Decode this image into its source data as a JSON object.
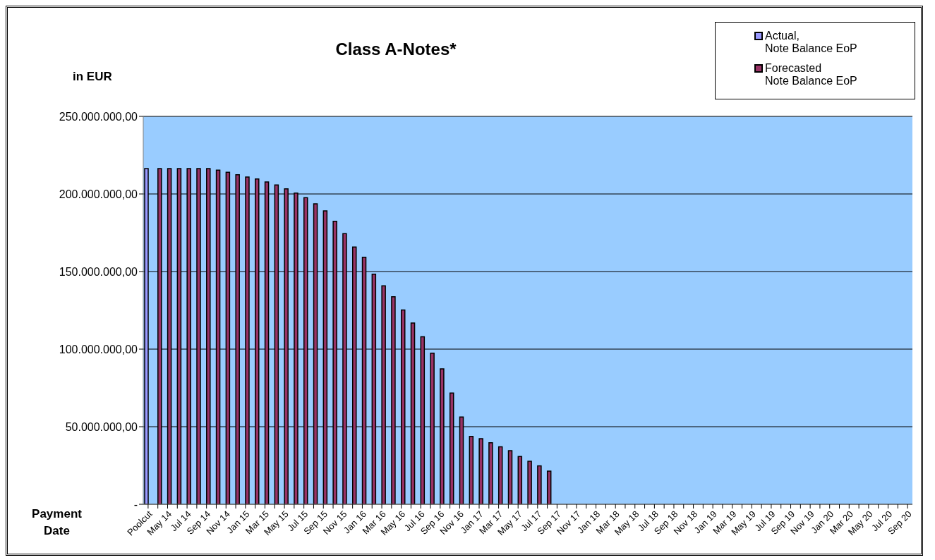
{
  "chart_data": {
    "type": "bar",
    "title": "Class A-Notes*",
    "ylabel": "in EUR",
    "xlabel": "Payment Date",
    "categories": [
      "Poolcut",
      null,
      "May 14",
      null,
      "Jul 14",
      null,
      "Sep 14",
      null,
      "Nov 14",
      null,
      "Jan 15",
      null,
      "Mar 15",
      null,
      "May 15",
      null,
      "Jul 15",
      null,
      "Sep 15",
      null,
      "Nov 15",
      null,
      "Jan 16",
      null,
      "Mar 16",
      null,
      "May 16",
      null,
      "Jul 16",
      null,
      "Sep 16",
      null,
      "Nov 16",
      null,
      "Jan 17",
      null,
      "Mar 17",
      null,
      "May 17",
      null,
      "Jul 17",
      null,
      "Sep 17",
      null,
      "Nov 17",
      null,
      "Jan 18",
      null,
      "Mar 18",
      null,
      "May 18",
      null,
      "Jul 18",
      null,
      "Sep 18",
      null,
      "Nov 18",
      null,
      "Jan 19",
      null,
      "Mar 19",
      null,
      "May 19",
      null,
      "Jul 19",
      null,
      "Sep 19",
      null,
      "Nov 19",
      null,
      "Jan 20",
      null,
      "Mar 20",
      null,
      "May 20",
      null,
      "Jul 20",
      null,
      "Sep 20"
    ],
    "series": [
      {
        "name": "Actual,\nNote Balance EoP",
        "color": "#9999ff",
        "values": [
          216400000,
          null,
          null,
          null,
          null,
          null,
          null,
          null,
          null,
          null,
          null,
          null,
          null,
          null,
          null,
          null,
          null,
          null,
          null,
          null,
          null,
          null,
          null,
          null,
          null,
          null,
          null,
          null,
          null,
          null,
          null,
          null,
          null,
          null,
          null,
          null,
          null,
          null,
          null,
          null,
          null,
          null,
          null,
          null,
          null,
          null,
          null,
          null,
          null,
          null,
          null,
          null,
          null,
          null,
          null,
          null,
          null,
          null,
          null,
          null,
          null,
          null,
          null,
          null,
          null,
          null,
          null,
          null,
          null,
          null,
          null,
          null,
          null,
          null,
          null,
          null,
          null,
          null,
          null
        ]
      },
      {
        "name": "Forecasted\nNote Balance EoP",
        "color": "#993366",
        "values": [
          null,
          216400000,
          216400000,
          216400000,
          216400000,
          216400000,
          216400000,
          215300000,
          214000000,
          212400000,
          210900000,
          209700000,
          207700000,
          205800000,
          203300000,
          200600000,
          197600000,
          193600000,
          189100000,
          182400000,
          174400000,
          165800000,
          159200000,
          148300000,
          140800000,
          133800000,
          125200000,
          116800000,
          108000000,
          97400000,
          87300000,
          71700000,
          56200000,
          43800000,
          42300000,
          39700000,
          37100000,
          34500000,
          30800000,
          27700000,
          24800000,
          21400000,
          null,
          null,
          null,
          null,
          null,
          null,
          null,
          null,
          null,
          null,
          null,
          null,
          null,
          null,
          null,
          null,
          null,
          null,
          null,
          null,
          null,
          null,
          null,
          null,
          null,
          null,
          null,
          null,
          null,
          null,
          null,
          null,
          null,
          null,
          null,
          null,
          null
        ]
      }
    ],
    "ylim": [
      0,
      250000000
    ],
    "yticks": [
      {
        "value": 0,
        "label": "-"
      },
      {
        "value": 50000000,
        "label": "50.000.000,00"
      },
      {
        "value": 100000000,
        "label": "100.000.000,00"
      },
      {
        "value": 150000000,
        "label": "150.000.000,00"
      },
      {
        "value": 200000000,
        "label": "200.000.000,00"
      },
      {
        "value": 250000000,
        "label": "250.000.000,00"
      }
    ],
    "grid": "y",
    "legend": "top right"
  }
}
